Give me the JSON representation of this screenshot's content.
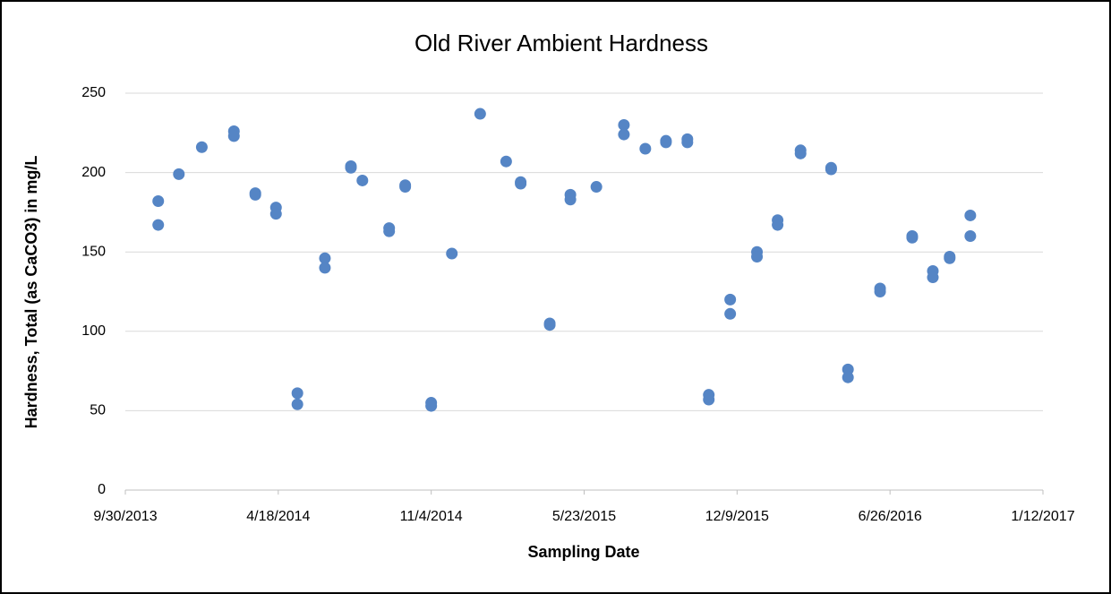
{
  "chart_data": {
    "type": "scatter",
    "title": "Old River Ambient Hardness",
    "x_label": "Sampling Date",
    "y_label": "Hardness, Total (as CaCO3) in mg/L",
    "color": "#5585c5",
    "grid": true,
    "xlim": [
      "9/30/2013",
      "1/12/2017"
    ],
    "xticks": [
      "9/30/2013",
      "4/18/2014",
      "11/4/2014",
      "5/23/2015",
      "12/9/2015",
      "6/26/2016",
      "1/12/2017"
    ],
    "ylim": [
      0,
      250
    ],
    "yticks": [
      0,
      50,
      100,
      150,
      200,
      250
    ],
    "series": [
      {
        "name": "Hardness",
        "x": [
          "11/12/2013",
          "11/12/2013",
          "12/9/2013",
          "1/8/2014",
          "2/19/2014",
          "2/19/2014",
          "3/19/2014",
          "3/19/2014",
          "4/15/2014",
          "4/15/2014",
          "5/13/2014",
          "5/13/2014",
          "6/18/2014",
          "6/18/2014",
          "7/22/2014",
          "7/22/2014",
          "8/6/2014",
          "9/10/2014",
          "9/10/2014",
          "10/1/2014",
          "10/1/2014",
          "11/4/2014",
          "11/4/2014",
          "12/1/2014",
          "1/7/2015",
          "2/10/2015",
          "3/1/2015",
          "3/1/2015",
          "4/8/2015",
          "4/8/2015",
          "5/5/2015",
          "5/5/2015",
          "6/8/2015",
          "7/14/2015",
          "7/14/2015",
          "8/11/2015",
          "9/7/2015",
          "9/7/2015",
          "10/5/2015",
          "10/5/2015",
          "11/2/2015",
          "11/2/2015",
          "11/30/2015",
          "11/30/2015",
          "1/4/2016",
          "1/4/2016",
          "1/31/2016",
          "1/31/2016",
          "3/1/2016",
          "3/1/2016",
          "4/10/2016",
          "4/10/2016",
          "5/2/2016",
          "5/2/2016",
          "6/13/2016",
          "6/13/2016",
          "7/25/2016",
          "7/25/2016",
          "8/21/2016",
          "8/21/2016",
          "9/12/2016",
          "9/12/2016",
          "10/9/2016",
          "10/9/2016"
        ],
        "values": [
          182,
          167,
          199,
          216,
          226,
          223,
          187,
          186,
          178,
          174,
          61,
          54,
          146,
          140,
          204,
          203,
          195,
          165,
          163,
          192,
          191,
          55,
          53,
          149,
          237,
          207,
          194,
          193,
          105,
          104,
          186,
          183,
          191,
          230,
          224,
          215,
          220,
          219,
          221,
          219,
          60,
          57,
          120,
          111,
          150,
          147,
          170,
          167,
          214,
          212,
          203,
          202,
          76,
          71,
          127,
          125,
          160,
          159,
          138,
          134,
          147,
          146,
          173,
          160
        ]
      }
    ]
  }
}
